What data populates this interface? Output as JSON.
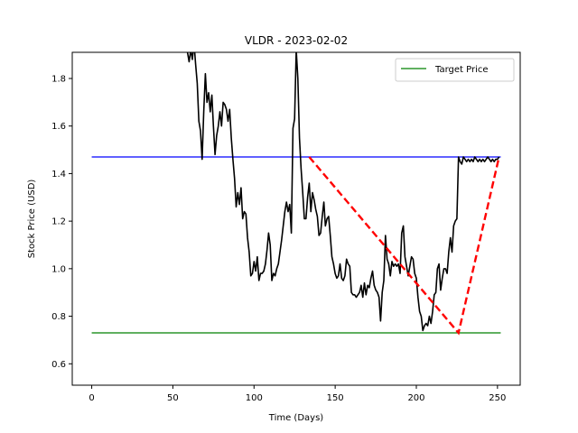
{
  "chart_data": {
    "type": "line",
    "title": "VLDR - 2023-02-02",
    "xlabel": "Time (Days)",
    "ylabel": "Stock Price (USD)",
    "xlim": [
      -12,
      264
    ],
    "ylim": [
      0.51,
      1.91
    ],
    "xticks": [
      0,
      50,
      100,
      150,
      200,
      250
    ],
    "yticks": [
      0.6,
      0.8,
      1.0,
      1.2,
      1.4,
      1.6,
      1.8
    ],
    "grid": false,
    "legend": {
      "position": "top-right",
      "entries": [
        {
          "label": "Target Price",
          "color": "#008000"
        }
      ]
    },
    "series": [
      {
        "kind": "price",
        "color": "#000000",
        "points": [
          [
            56,
            2.05
          ],
          [
            58,
            1.95
          ],
          [
            59,
            1.91
          ],
          [
            60,
            1.87
          ],
          [
            61,
            1.92
          ],
          [
            62,
            1.88
          ],
          [
            63,
            1.95
          ],
          [
            64,
            1.86
          ],
          [
            65,
            1.78
          ],
          [
            66,
            1.62
          ],
          [
            67,
            1.58
          ],
          [
            68,
            1.46
          ],
          [
            69,
            1.66
          ],
          [
            70,
            1.82
          ],
          [
            71,
            1.7
          ],
          [
            72,
            1.74
          ],
          [
            73,
            1.66
          ],
          [
            74,
            1.73
          ],
          [
            75,
            1.6
          ],
          [
            76,
            1.48
          ],
          [
            77,
            1.56
          ],
          [
            78,
            1.6
          ],
          [
            79,
            1.66
          ],
          [
            80,
            1.6
          ],
          [
            81,
            1.7
          ],
          [
            82,
            1.69
          ],
          [
            83,
            1.67
          ],
          [
            84,
            1.62
          ],
          [
            85,
            1.67
          ],
          [
            86,
            1.55
          ],
          [
            87,
            1.46
          ],
          [
            88,
            1.38
          ],
          [
            89,
            1.26
          ],
          [
            90,
            1.32
          ],
          [
            91,
            1.27
          ],
          [
            92,
            1.34
          ],
          [
            93,
            1.21
          ],
          [
            94,
            1.24
          ],
          [
            95,
            1.23
          ],
          [
            96,
            1.13
          ],
          [
            97,
            1.07
          ],
          [
            98,
            0.97
          ],
          [
            99,
            0.98
          ],
          [
            100,
            1.03
          ],
          [
            101,
            0.99
          ],
          [
            102,
            1.05
          ],
          [
            103,
            0.95
          ],
          [
            104,
            0.98
          ],
          [
            105,
            0.98
          ],
          [
            106,
            0.99
          ],
          [
            107,
            1.02
          ],
          [
            108,
            1.08
          ],
          [
            109,
            1.15
          ],
          [
            110,
            1.1
          ],
          [
            111,
            0.95
          ],
          [
            112,
            0.98
          ],
          [
            113,
            0.97
          ],
          [
            114,
            1.0
          ],
          [
            115,
            1.02
          ],
          [
            116,
            1.07
          ],
          [
            117,
            1.12
          ],
          [
            118,
            1.18
          ],
          [
            119,
            1.24
          ],
          [
            120,
            1.28
          ],
          [
            121,
            1.24
          ],
          [
            122,
            1.27
          ],
          [
            123,
            1.15
          ],
          [
            124,
            1.59
          ],
          [
            125,
            1.63
          ],
          [
            126,
            1.92
          ],
          [
            127,
            1.8
          ],
          [
            128,
            1.55
          ],
          [
            129,
            1.42
          ],
          [
            130,
            1.32
          ],
          [
            131,
            1.21
          ],
          [
            132,
            1.21
          ],
          [
            133,
            1.3
          ],
          [
            134,
            1.36
          ],
          [
            135,
            1.24
          ],
          [
            136,
            1.32
          ],
          [
            137,
            1.29
          ],
          [
            138,
            1.25
          ],
          [
            139,
            1.22
          ],
          [
            140,
            1.14
          ],
          [
            141,
            1.15
          ],
          [
            142,
            1.22
          ],
          [
            143,
            1.28
          ],
          [
            144,
            1.18
          ],
          [
            145,
            1.21
          ],
          [
            146,
            1.22
          ],
          [
            147,
            1.14
          ],
          [
            148,
            1.05
          ],
          [
            149,
            1.02
          ],
          [
            150,
            0.98
          ],
          [
            151,
            0.96
          ],
          [
            152,
            0.97
          ],
          [
            153,
            1.02
          ],
          [
            154,
            0.96
          ],
          [
            155,
            0.95
          ],
          [
            156,
            0.97
          ],
          [
            157,
            1.04
          ],
          [
            158,
            1.02
          ],
          [
            159,
            1.01
          ],
          [
            160,
            0.9
          ],
          [
            161,
            0.89
          ],
          [
            162,
            0.89
          ],
          [
            163,
            0.88
          ],
          [
            164,
            0.89
          ],
          [
            165,
            0.9
          ],
          [
            166,
            0.93
          ],
          [
            167,
            0.88
          ],
          [
            168,
            0.94
          ],
          [
            169,
            0.89
          ],
          [
            170,
            0.93
          ],
          [
            171,
            0.92
          ],
          [
            172,
            0.96
          ],
          [
            173,
            0.99
          ],
          [
            174,
            0.93
          ],
          [
            175,
            0.91
          ],
          [
            176,
            0.9
          ],
          [
            177,
            0.88
          ],
          [
            178,
            0.78
          ],
          [
            179,
            0.9
          ],
          [
            180,
            0.95
          ],
          [
            181,
            1.14
          ],
          [
            182,
            1.04
          ],
          [
            183,
            1.02
          ],
          [
            184,
            0.97
          ],
          [
            185,
            1.03
          ],
          [
            186,
            1.01
          ],
          [
            187,
            1.02
          ],
          [
            188,
            1.01
          ],
          [
            189,
            1.02
          ],
          [
            190,
            0.98
          ],
          [
            191,
            1.15
          ],
          [
            192,
            1.18
          ],
          [
            193,
            1.05
          ],
          [
            194,
            1.01
          ],
          [
            195,
            0.97
          ],
          [
            196,
            1.01
          ],
          [
            197,
            1.05
          ],
          [
            198,
            1.04
          ],
          [
            199,
            0.98
          ],
          [
            200,
            0.96
          ],
          [
            201,
            0.88
          ],
          [
            202,
            0.82
          ],
          [
            203,
            0.8
          ],
          [
            204,
            0.74
          ],
          [
            205,
            0.76
          ],
          [
            206,
            0.77
          ],
          [
            207,
            0.76
          ],
          [
            208,
            0.8
          ],
          [
            209,
            0.77
          ],
          [
            210,
            0.82
          ],
          [
            211,
            0.89
          ],
          [
            212,
            0.9
          ],
          [
            213,
            1.0
          ],
          [
            214,
            1.02
          ],
          [
            215,
            0.91
          ],
          [
            216,
            0.96
          ],
          [
            217,
            1.0
          ],
          [
            218,
            1.0
          ],
          [
            219,
            0.98
          ],
          [
            220,
            1.07
          ],
          [
            221,
            1.13
          ],
          [
            222,
            1.07
          ],
          [
            223,
            1.18
          ],
          [
            224,
            1.2
          ],
          [
            225,
            1.21
          ],
          [
            226,
            1.47
          ],
          [
            227,
            1.45
          ],
          [
            228,
            1.44
          ],
          [
            229,
            1.47
          ],
          [
            230,
            1.46
          ],
          [
            231,
            1.45
          ],
          [
            232,
            1.46
          ],
          [
            233,
            1.45
          ],
          [
            234,
            1.46
          ],
          [
            235,
            1.45
          ],
          [
            236,
            1.47
          ],
          [
            237,
            1.46
          ],
          [
            238,
            1.45
          ],
          [
            239,
            1.46
          ],
          [
            240,
            1.45
          ],
          [
            241,
            1.46
          ],
          [
            242,
            1.45
          ],
          [
            243,
            1.46
          ],
          [
            244,
            1.47
          ],
          [
            245,
            1.46
          ],
          [
            246,
            1.45
          ],
          [
            247,
            1.46
          ],
          [
            248,
            1.45
          ],
          [
            249,
            1.46
          ],
          [
            250,
            1.46
          ],
          [
            251,
            1.47
          ]
        ]
      }
    ],
    "reference_lines": [
      {
        "name": "Target Price",
        "y": 0.73,
        "x": [
          0,
          252
        ],
        "color": "#008000"
      },
      {
        "y": 1.47,
        "x": [
          0,
          252
        ],
        "color": "#0000ff"
      }
    ],
    "trend_line": {
      "color": "#ff0000",
      "dashed": true,
      "points": [
        [
          134,
          1.47
        ],
        [
          226,
          0.73
        ],
        [
          251,
          1.47
        ]
      ]
    }
  }
}
